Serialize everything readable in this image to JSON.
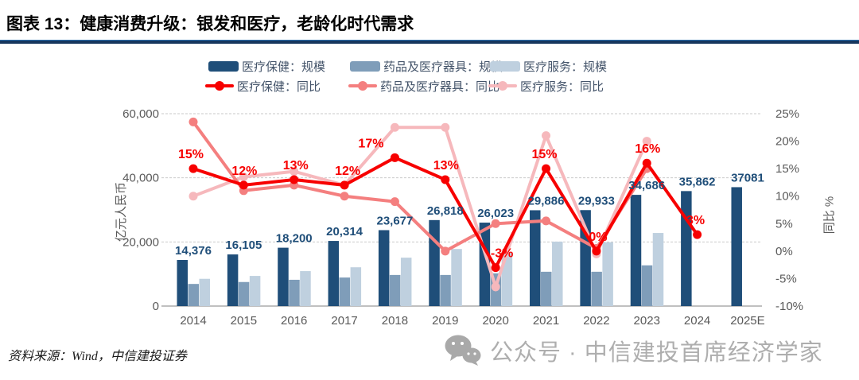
{
  "header": {
    "title": "图表 13：健康消费升级：银发和医疗，老龄化时代需求"
  },
  "legend": {
    "items": [
      {
        "label": "医疗保健：规模",
        "marker": "bar",
        "color": "#1f4e79"
      },
      {
        "label": "药品及医疗器具：规模",
        "marker": "bar",
        "color": "#7f9db9"
      },
      {
        "label": "医疗服务：规模",
        "marker": "bar",
        "color": "#bfd0df"
      },
      {
        "label": "医疗保健：同比",
        "marker": "line",
        "color": "#f70000"
      },
      {
        "label": "药品及医疗器具：同比",
        "marker": "line",
        "color": "#f47f7f"
      },
      {
        "label": "医疗服务：同比",
        "marker": "line",
        "color": "#f6b8bc"
      }
    ]
  },
  "chart_data": {
    "type": "combo-bar-line",
    "categories": [
      "2014",
      "2015",
      "2016",
      "2017",
      "2018",
      "2019",
      "2020",
      "2021",
      "2022",
      "2023",
      "2024",
      "2025E"
    ],
    "bar_series": [
      {
        "name": "医疗保健：规模",
        "color": "#1f4e79",
        "values": [
          14376,
          16105,
          18200,
          20314,
          23677,
          26818,
          26023,
          29886,
          29933,
          34686,
          35862,
          37081
        ],
        "labels": [
          "14,376",
          "16,105",
          "18,200",
          "20,314",
          "23,677",
          "26,818",
          "26,023",
          "29,886",
          "29,933",
          "34,686",
          "35,862",
          "37081"
        ]
      },
      {
        "name": "药品及医疗器具：规模",
        "color": "#7f9db9",
        "values": [
          6900,
          7500,
          8200,
          8900,
          9700,
          9700,
          10200,
          10700,
          10700,
          12700,
          null,
          null
        ]
      },
      {
        "name": "医疗服务：规模",
        "color": "#bfd0df",
        "values": [
          8500,
          9400,
          10900,
          12100,
          15100,
          17800,
          16600,
          20100,
          19900,
          22800,
          null,
          null
        ]
      }
    ],
    "line_series": [
      {
        "name": "医疗保健：同比",
        "color": "#f70000",
        "values": [
          15,
          12,
          13,
          12,
          17,
          13,
          -3,
          15,
          0,
          16,
          3,
          null
        ],
        "labels": [
          "15%",
          "12%",
          "13%",
          "12%",
          "17%",
          "13%",
          "-3%",
          "15%",
          "0%",
          "16%",
          "3%",
          null
        ]
      },
      {
        "name": "药品及医疗器具：同比",
        "color": "#f47f7f",
        "values": [
          23.5,
          11,
          12,
          10,
          9,
          0,
          5,
          5.5,
          0.5,
          15,
          null,
          null
        ]
      },
      {
        "name": "医疗服务：同比",
        "color": "#f6b8bc",
        "values": [
          10,
          13.5,
          14.5,
          12,
          22.5,
          22.5,
          -6.5,
          21,
          -0.5,
          20,
          null,
          null
        ]
      }
    ],
    "ylabel_left": "亿元人民币",
    "ylabel_right": "同比 %",
    "ylim_left": [
      0,
      60000
    ],
    "ylim_right": [
      -10,
      25
    ],
    "yticks_left": [
      "0",
      "20,000",
      "40,000",
      "60,000"
    ],
    "yticks_right": [
      "-10%",
      "-5%",
      "0%",
      "5%",
      "10%",
      "15%",
      "20%",
      "25%"
    ],
    "grid": "horizontal-dashed",
    "legend_position": "top"
  },
  "colors": {
    "header_rule": "#17375e",
    "bar_label": "#1f4e79",
    "value_label_red": "#f70000",
    "axis_text": "#595959",
    "gridline": "#c9c9c9",
    "axis_line": "#9b9b9b",
    "watermark": "#aeaeae"
  },
  "footer": {
    "source": "资料来源：Wind，中信建投证券",
    "watermark": "公众号 · 中信建投首席经济学家"
  }
}
